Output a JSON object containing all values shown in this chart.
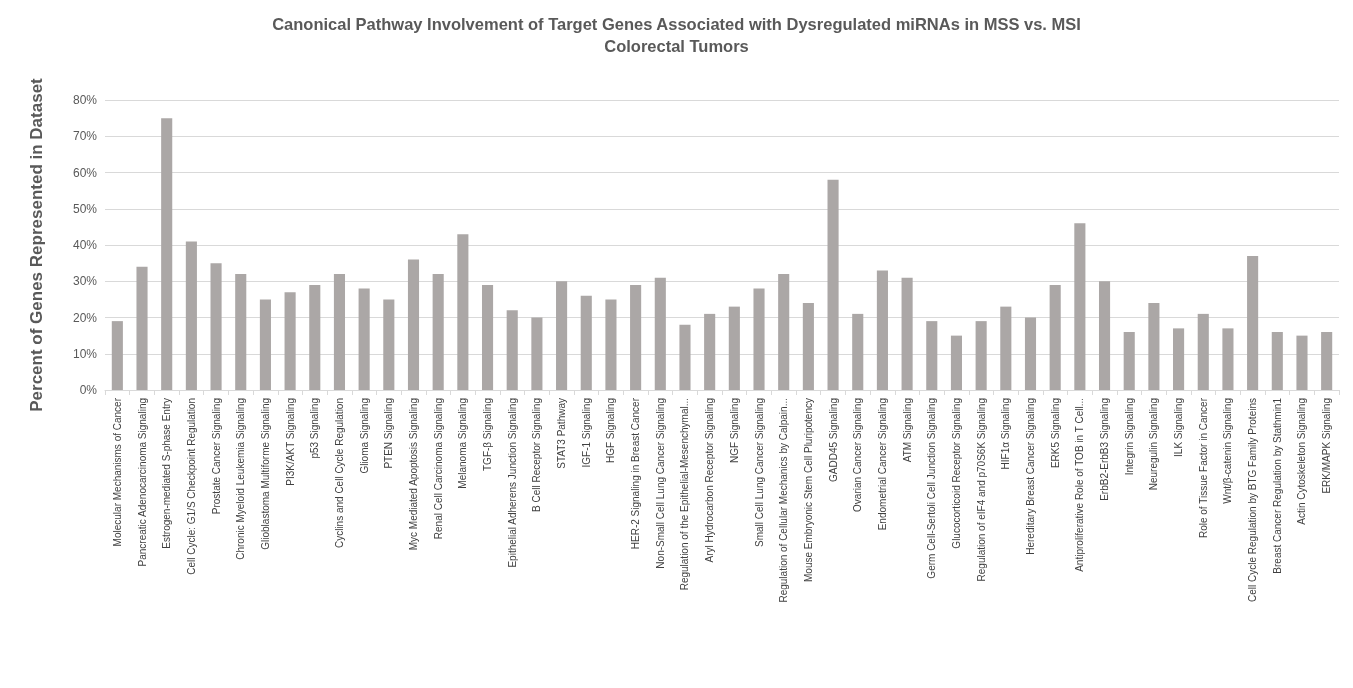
{
  "chart_data": {
    "type": "bar",
    "title": "Canonical Pathway Involvement of Target Genes Associated with Dysregulated miRNAs in MSS vs. MSI\nColorectal Tumors",
    "ylabel": "Percent of Genes Represented in Dataset",
    "categories": [
      "Molecular Mechanisms of Cancer",
      "Pancreatic Adenocarcinoma Signaling",
      "Estrogen-mediated S-phase Entry",
      "Cell Cycle: G1/S Checkpoint Regulation",
      "Prostate Cancer Signaling",
      "Chronic Myeloid Leukemia Signaling",
      "Glioblastoma Multiforme Signaling",
      "PI3K/AKT Signaling",
      "p53 Signaling",
      "Cyclins and Cell Cycle Regulation",
      "Glioma Signaling",
      "PTEN Signaling",
      "Myc Mediated Apoptosis Signaling",
      "Renal Cell Carcinoma Signaling",
      "Melanoma Signaling",
      "TGF-β Signaling",
      "Epithelial Adherens Junction Signaling",
      "B Cell Receptor Signaling",
      "STAT3 Pathway",
      "IGF-1 Signaling",
      "HGF Signaling",
      "HER-2 Signaling in Breast Cancer",
      "Non-Small Cell Lung Cancer Signaling",
      "Regulation of the Epithelial-Mesenchymal...",
      "Aryl Hydrocarbon Receptor Signaling",
      "NGF Signaling",
      "Small Cell Lung Cancer Signaling",
      "Regulation of Cellular Mechanics by Calpain...",
      "Mouse Embryonic Stem Cell Pluripotency",
      "GADD45 Signaling",
      "Ovarian Cancer Signaling",
      "Endometrial Cancer Signaling",
      "ATM Signaling",
      "Germ Cell-Sertoli Cell Junction Signaling",
      "Glucocorticoid Receptor Signaling",
      "Regulation of eIF4 and p70S6K Signaling",
      "HIF1α Signaling",
      "Hereditary Breast Cancer Signaling",
      "ERK5 Signaling",
      "Antiproliferative Role of TOB in T Cell...",
      "ErbB2-ErbB3 Signaling",
      "Integrin Signaling",
      "Neuregulin Signaling",
      "ILK Signaling",
      "Role of Tissue Factor in Cancer",
      "Wnt/β-catenin Signaling",
      "Cell Cycle Regulation by BTG Family Proteins",
      "Breast Cancer Regulation by Stathmin1",
      "Actin Cytoskeleton Signaling",
      "ERK/MAPK Signaling"
    ],
    "values": [
      19,
      34,
      75,
      41,
      35,
      32,
      25,
      27,
      29,
      32,
      28,
      25,
      36,
      32,
      43,
      29,
      22,
      20,
      30,
      26,
      25,
      29,
      31,
      18,
      21,
      23,
      28,
      32,
      24,
      58,
      21,
      33,
      31,
      19,
      15,
      19,
      23,
      20,
      29,
      46,
      30,
      16,
      24,
      17,
      21,
      17,
      37,
      16,
      15,
      16
    ],
    "color": "#aba7a6",
    "ylim": [
      0,
      80
    ],
    "yticks": [
      {
        "value": 0,
        "label": "0%"
      },
      {
        "value": 10,
        "label": "10%"
      },
      {
        "value": 20,
        "label": "20%"
      },
      {
        "value": 30,
        "label": "30%"
      },
      {
        "value": 40,
        "label": "40%"
      },
      {
        "value": 50,
        "label": "50%"
      },
      {
        "value": 60,
        "label": "60%"
      },
      {
        "value": 70,
        "label": "70%"
      },
      {
        "value": 80,
        "label": "80%"
      }
    ],
    "grid": "y"
  }
}
